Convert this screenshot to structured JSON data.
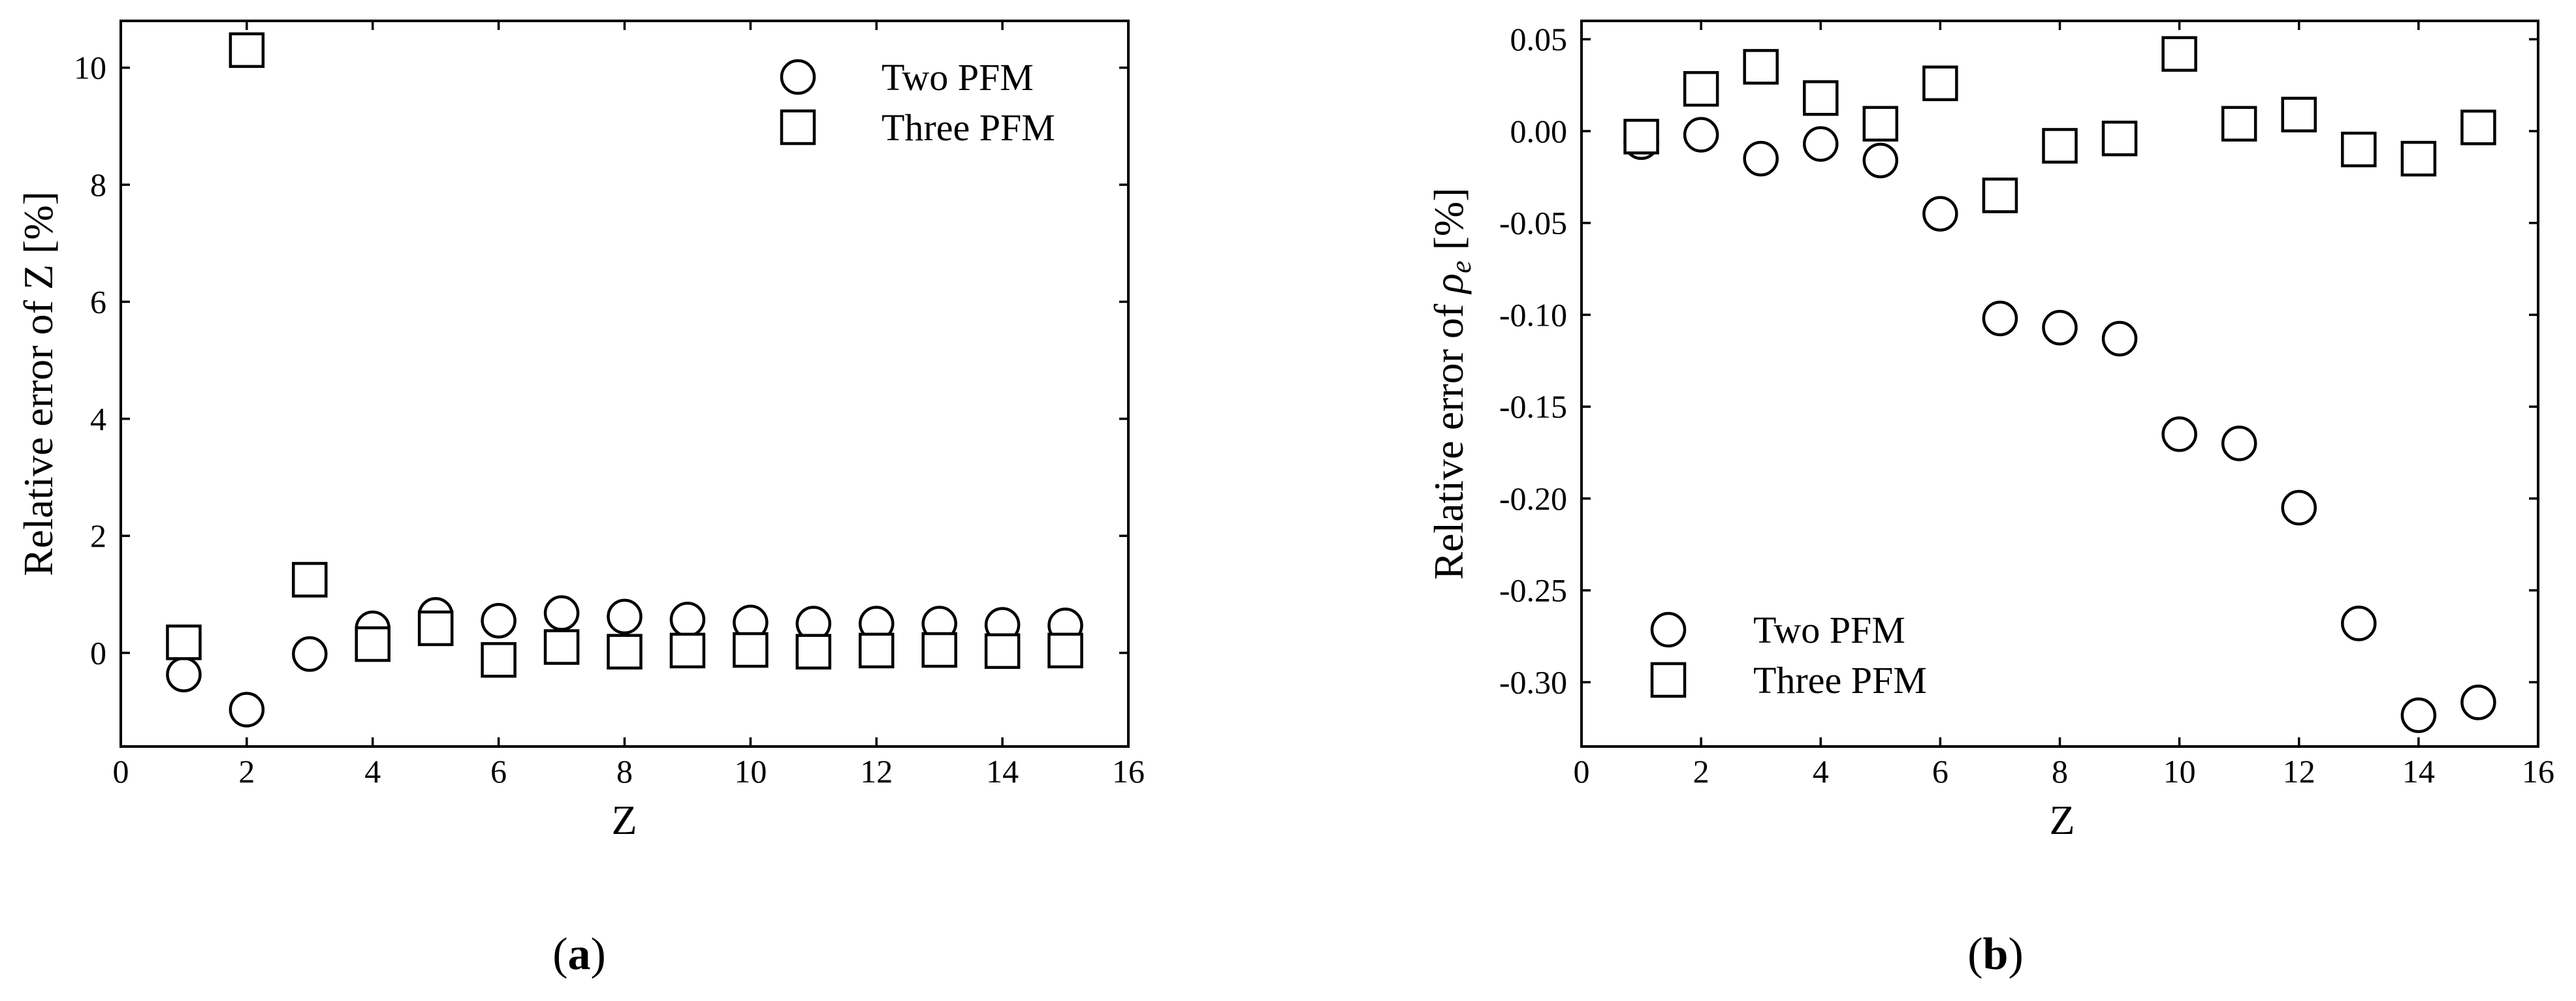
{
  "chart_data": [
    {
      "type": "scatter",
      "panel_label": "a",
      "xlabel": "Z",
      "ylabel": "Relative error of Z [%]",
      "xlim": [
        0,
        16
      ],
      "ylim": [
        -1.6,
        10.8
      ],
      "xticks": [
        0,
        2,
        4,
        6,
        8,
        10,
        12,
        14,
        16
      ],
      "yticks": [
        0,
        2,
        4,
        6,
        8,
        10
      ],
      "grid": false,
      "legend_position": "top-right",
      "series": [
        {
          "name": "Two PFM",
          "marker": "circle",
          "x": [
            1,
            2,
            3,
            4,
            5,
            6,
            7,
            8,
            9,
            10,
            11,
            12,
            13,
            14,
            15
          ],
          "y": [
            -0.37,
            -0.97,
            -0.02,
            0.42,
            0.65,
            0.55,
            0.68,
            0.62,
            0.57,
            0.52,
            0.5,
            0.5,
            0.5,
            0.48,
            0.47
          ]
        },
        {
          "name": "Three PFM",
          "marker": "square",
          "x": [
            1,
            2,
            3,
            4,
            5,
            6,
            7,
            8,
            9,
            10,
            11,
            12,
            13,
            14,
            15
          ],
          "y": [
            0.18,
            10.3,
            1.25,
            0.15,
            0.42,
            -0.12,
            0.1,
            0.02,
            0.04,
            0.05,
            0.02,
            0.04,
            0.05,
            0.03,
            0.04
          ]
        }
      ]
    },
    {
      "type": "scatter",
      "panel_label": "b",
      "xlabel": "Z",
      "ylabel": "Relative error of ρe [%]",
      "xlim": [
        0,
        16
      ],
      "ylim": [
        -0.335,
        0.06
      ],
      "xticks": [
        0,
        2,
        4,
        6,
        8,
        10,
        12,
        14,
        16
      ],
      "yticks": [
        0.05,
        0.0,
        -0.05,
        -0.1,
        -0.15,
        -0.2,
        -0.25,
        -0.3
      ],
      "ytick_labels": [
        "0.05",
        "0.00",
        "-0.05",
        "-0.10",
        "-0.15",
        "-0.20",
        "-0.25",
        "-0.30"
      ],
      "grid": false,
      "legend_position": "bottom-left",
      "series": [
        {
          "name": "Two PFM",
          "marker": "circle",
          "x": [
            1,
            2,
            3,
            4,
            5,
            6,
            7,
            8,
            9,
            10,
            11,
            12,
            13,
            14,
            15
          ],
          "y": [
            -0.006,
            -0.002,
            -0.015,
            -0.007,
            -0.016,
            -0.045,
            -0.102,
            -0.107,
            -0.113,
            -0.165,
            -0.17,
            -0.205,
            -0.268,
            -0.318,
            -0.311
          ]
        },
        {
          "name": "Three PFM",
          "marker": "square",
          "x": [
            1,
            2,
            3,
            4,
            5,
            6,
            7,
            8,
            9,
            10,
            11,
            12,
            13,
            14,
            15
          ],
          "y": [
            -0.003,
            0.023,
            0.035,
            0.018,
            0.004,
            0.026,
            -0.035,
            -0.008,
            -0.004,
            0.042,
            0.004,
            0.009,
            -0.01,
            -0.015,
            0.002
          ]
        }
      ]
    }
  ]
}
